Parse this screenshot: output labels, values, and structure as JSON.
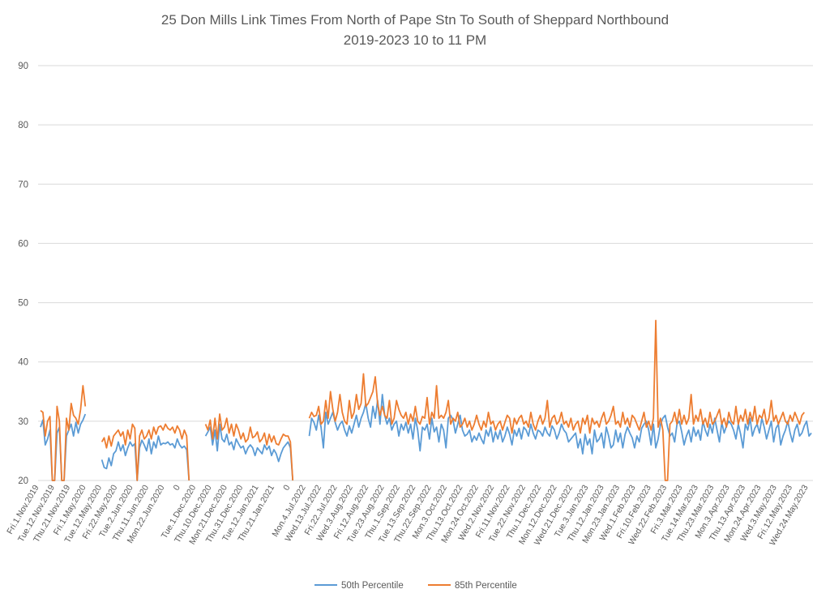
{
  "chart_data": {
    "type": "line",
    "title": "25 Don Mills Link Times From North of Pape Stn To South of Sheppard Northbound",
    "subtitle": "2019-2023 10 to 11 PM",
    "xlabel": "",
    "ylabel": "",
    "ylim": [
      20,
      90
    ],
    "yticks": [
      20,
      30,
      40,
      50,
      60,
      70,
      80,
      90
    ],
    "grid": true,
    "legend_position": "bottom",
    "x_tick_labels": [
      "Fri.1.Nov.2019",
      "Tue.12.Nov.2019",
      "Thu.21.Nov.2019",
      "Fri.1.May.2020",
      "Tue.12.May.2020",
      "Fri.22.May.2020",
      "Tue.2.Jun.2020",
      "Thu.11.Jun.2020",
      "Mon.22.Jun.2020",
      "0",
      "Tue.1.Dec.2020",
      "Thu.10.Dec.2020",
      "Mon.21.Dec.2020",
      "Thu.31.Dec.2020",
      "Tue.12.Jan.2021",
      "Thu.21.Jan.2021",
      "0",
      "Mon.4.Jul.2022",
      "Wed.13.Jul.2022",
      "Fri.22.Jul.2022",
      "Wed.3.Aug.2022",
      "Fri.12.Aug.2022",
      "Tue.23.Aug.2022",
      "Thu.1.Sep.2022",
      "Tue.13.Sep.2022",
      "Thu.22.Sep.2022",
      "Mon.3.Oct.2022",
      "Thu.13.Oct.2022",
      "Mon.24.Oct.2022",
      "Wed.2.Nov.2022",
      "Fri.11.Nov.2022",
      "Tue.22.Nov.2022",
      "Thu.1.Dec.2022",
      "Mon.12.Dec.2022",
      "Wed.21.Dec.2022",
      "Tue.3.Jan.2023",
      "Thu.12.Jan.2023",
      "Mon.23.Jan.2023",
      "Wed.1.Feb.2023",
      "Fri.10.Feb.2023",
      "Wed.22.Feb.2023",
      "Fri.3.Mar.2023",
      "Tue.14.Mar.2023",
      "Thu.23.Mar.2023",
      "Mon.3.Apr.2023",
      "Thu.13.Apr.2023",
      "Mon.24.Apr.2023",
      "Wed.3.May.2023",
      "Fri.12.May.2023",
      "Wed.24.May.2023"
    ],
    "series": [
      {
        "name": "50th Percentile",
        "color": "#5B9BD5",
        "segments": [
          [
            29.0,
            30.2,
            26.0,
            27.0,
            28.5,
            20,
            20,
            28.0,
            29.0,
            20,
            20,
            27.5,
            28.5,
            29.5,
            27.5,
            29.8,
            28.0,
            29.5,
            30.2,
            31.2
          ],
          [
            23.5,
            22.2,
            22.0,
            23.8,
            22.5,
            24.5,
            25.0,
            26.5,
            25.0,
            26.0,
            24.2,
            25.5,
            26.5,
            25.8,
            26.2,
            20,
            25.5,
            26.8,
            26.0,
            25.0,
            27.0,
            24.5,
            26.5,
            25.5,
            27.5,
            26.0,
            26.3,
            26.2,
            26.5,
            26.0,
            26.2,
            25.5,
            27.0,
            26.0,
            25.5,
            25.8,
            25.2,
            20
          ],
          [
            27.5,
            28.2,
            29.0,
            26.0,
            28.5,
            25.0,
            29.5,
            27.0,
            26.5,
            27.8,
            26.0,
            26.5,
            25.2,
            27.0,
            26.2,
            25.5,
            25.8,
            24.5,
            25.5,
            26.0,
            25.5,
            24.2,
            25.5,
            25.0,
            24.5,
            26.0,
            25.2,
            25.8,
            24.2,
            25.2,
            24.5,
            23.2,
            24.5,
            25.5,
            26.0,
            26.5,
            25.5,
            20
          ],
          [
            27.5,
            30.5,
            29.8,
            28.5,
            31.0,
            29.0,
            25.5,
            31.5,
            29.5,
            30.5,
            31.5,
            29.8,
            28.5,
            29.5,
            30.0,
            28.5,
            27.5,
            29.2,
            28.0,
            29.5,
            31.0,
            29.0,
            30.5,
            31.5,
            33.0,
            30.5,
            29.0,
            32.5,
            30.5,
            33.5,
            29.5,
            34.5,
            31.0,
            29.5,
            30.5,
            28.5,
            29.5,
            30.0,
            27.5,
            29.5,
            28.5,
            29.8,
            28.0,
            29.5,
            27.0,
            30.5,
            28.5,
            25.0,
            29.0,
            28.5,
            29.5,
            27.0,
            30.5,
            28.2,
            29.0,
            26.5,
            29.5,
            28.5,
            25.5,
            30.5,
            31.0,
            30.2,
            28.0,
            29.5,
            31.0,
            28.5,
            27.5,
            27.8,
            28.5,
            26.5,
            27.5,
            26.8,
            28.0,
            27.0,
            26.2,
            28.5,
            27.5,
            29.0,
            26.5,
            28.2,
            27.0,
            28.5,
            26.5,
            27.5,
            29.0,
            27.8,
            26.0,
            28.5,
            27.5,
            28.8,
            27.0,
            29.0,
            28.5,
            27.5,
            29.5,
            28.0,
            27.0,
            28.5,
            28.2,
            27.5,
            29.0,
            28.0,
            27.5,
            29.2,
            28.5,
            27.0,
            28.0,
            29.5,
            28.5,
            28.0,
            26.5,
            27.0,
            27.5,
            28.0,
            25.5,
            27.0,
            24.5,
            27.8,
            26.0,
            27.0,
            24.5,
            28.5,
            26.5,
            27.0,
            28.0,
            25.5,
            29.0,
            27.5,
            25.5,
            26.0,
            28.5,
            26.5,
            28.0,
            25.5,
            27.8,
            29.0,
            28.0,
            27.2,
            25.5,
            27.5,
            26.5,
            28.8,
            29.5,
            30.0,
            28.5,
            26.0,
            29.5,
            25.5,
            27.0,
            29.5,
            30.5,
            31.0,
            29.0,
            27.5,
            28.0,
            26.5,
            29.5,
            30.0,
            28.2,
            26.0,
            27.5,
            28.5,
            26.5,
            29.0,
            27.5,
            28.5,
            26.8,
            30.0,
            28.5,
            27.5,
            29.5,
            28.0,
            30.5,
            28.5,
            26.5,
            29.8,
            28.0,
            29.2,
            30.0,
            29.5,
            28.5,
            27.0,
            29.5,
            27.8,
            25.5,
            29.5,
            28.5,
            30.5,
            27.5,
            28.8,
            29.5,
            28.0,
            30.5,
            29.0,
            27.0,
            28.5,
            30.0,
            26.5,
            28.8,
            29.5,
            26.0,
            27.5,
            28.5,
            30.0,
            28.0,
            26.5,
            28.5,
            29.5,
            27.5,
            28.0,
            29.2,
            30.0,
            27.5,
            28.0
          ]
        ]
      },
      {
        "name": "85th Percentile",
        "color": "#ED7D31",
        "segments": [
          [
            31.8,
            31.5,
            27.5,
            30.0,
            30.8,
            20,
            20,
            32.5,
            30.0,
            20,
            20,
            30.5,
            28.5,
            33.0,
            31.0,
            30.5,
            29.5,
            32.0,
            36.0,
            32.5
          ],
          [
            26.5,
            27.2,
            25.5,
            27.5,
            25.8,
            27.5,
            28.0,
            28.5,
            27.5,
            28.2,
            26.0,
            28.5,
            27.0,
            29.5,
            28.8,
            20,
            27.5,
            28.5,
            27.0,
            27.5,
            28.5,
            27.0,
            29.0,
            27.8,
            29.0,
            29.2,
            28.5,
            29.5,
            28.8,
            28.5,
            29.0,
            28.0,
            29.2,
            28.5,
            27.0,
            28.5,
            27.5,
            20
          ],
          [
            29.5,
            28.5,
            30.2,
            27.0,
            30.5,
            27.0,
            31.2,
            28.5,
            29.0,
            30.5,
            28.0,
            29.5,
            27.5,
            29.5,
            28.5,
            27.0,
            28.0,
            26.5,
            27.0,
            29.0,
            27.2,
            27.5,
            28.2,
            26.5,
            27.0,
            28.0,
            26.0,
            27.8,
            26.5,
            27.5,
            26.2,
            26.0,
            27.0,
            27.8,
            27.5,
            27.5,
            26.5,
            20
          ],
          [
            30.5,
            31.5,
            30.8,
            31.0,
            32.5,
            29.5,
            30.0,
            33.5,
            30.5,
            35.0,
            32.0,
            30.0,
            31.5,
            34.5,
            31.5,
            30.0,
            29.5,
            33.5,
            30.5,
            31.5,
            34.5,
            32.0,
            33.0,
            38.0,
            32.5,
            33.0,
            34.0,
            35.0,
            37.5,
            33.0,
            31.0,
            32.5,
            31.0,
            30.5,
            33.5,
            29.5,
            30.5,
            33.5,
            32.0,
            31.0,
            30.5,
            31.5,
            29.5,
            31.2,
            30.0,
            32.5,
            30.0,
            29.5,
            30.8,
            30.5,
            34.0,
            29.5,
            31.5,
            30.5,
            36.0,
            30.5,
            31.0,
            30.5,
            31.5,
            33.5,
            29.5,
            30.5,
            30.0,
            31.5,
            29.0,
            29.5,
            30.5,
            29.0,
            30.0,
            28.5,
            29.5,
            31.0,
            29.5,
            28.5,
            30.0,
            29.0,
            31.5,
            29.5,
            30.0,
            28.5,
            29.5,
            30.0,
            28.5,
            29.8,
            31.0,
            30.5,
            28.0,
            30.5,
            29.5,
            30.5,
            31.0,
            29.5,
            30.0,
            29.0,
            31.5,
            29.5,
            28.5,
            30.0,
            31.0,
            29.5,
            30.5,
            33.5,
            29.0,
            30.5,
            31.0,
            29.5,
            30.0,
            31.5,
            29.5,
            30.0,
            29.0,
            30.5,
            28.5,
            29.5,
            30.0,
            28.0,
            30.5,
            29.5,
            31.0,
            28.0,
            30.5,
            29.5,
            30.0,
            29.0,
            30.5,
            31.5,
            29.5,
            30.0,
            31.0,
            32.5,
            29.5,
            30.0,
            29.0,
            31.5,
            29.5,
            30.5,
            29.0,
            31.0,
            30.5,
            29.5,
            28.5,
            30.0,
            31.5,
            29.0,
            30.0,
            28.5,
            30.5,
            47.0,
            29.0,
            30.5,
            28.5,
            20,
            20,
            29.5,
            30.0,
            31.5,
            29.5,
            32.0,
            29.5,
            31.0,
            29.5,
            30.5,
            34.5,
            29.5,
            31.0,
            30.0,
            32.0,
            29.5,
            30.5,
            29.0,
            31.5,
            29.5,
            30.0,
            31.0,
            32.0,
            29.5,
            30.5,
            29.0,
            31.5,
            30.0,
            29.5,
            32.5,
            29.5,
            31.0,
            30.0,
            32.0,
            29.5,
            31.5,
            30.0,
            32.5,
            29.5,
            31.0,
            30.5,
            32.0,
            29.5,
            30.5,
            33.5,
            30.0,
            31.0,
            29.5,
            30.5,
            31.5,
            30.0,
            29.5,
            31.0,
            30.0,
            31.5,
            30.5,
            29.5,
            31.0,
            31.5
          ]
        ]
      }
    ]
  }
}
